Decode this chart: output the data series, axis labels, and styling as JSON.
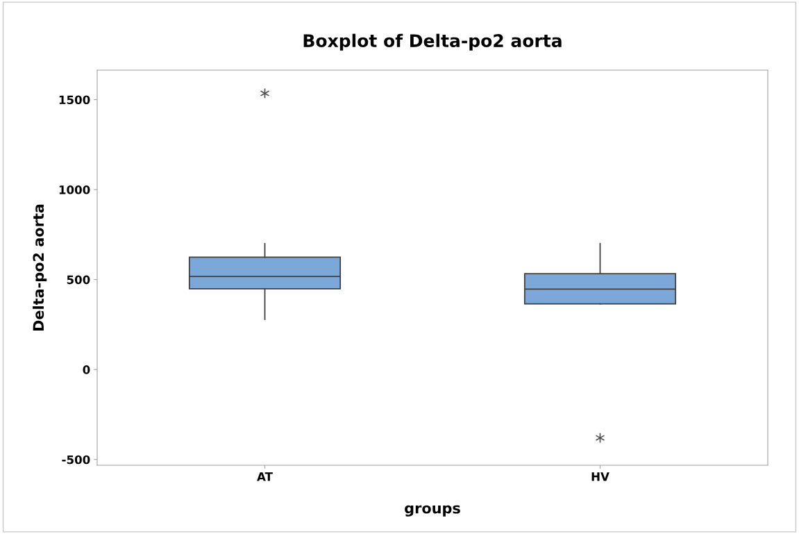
{
  "chart_data": {
    "type": "box",
    "title": "Boxplot of Delta-po2 aorta",
    "xlabel": "groups",
    "ylabel": "Delta-po2 aorta",
    "categories": [
      "AT",
      "HV"
    ],
    "series": [
      {
        "color": "#7ba7d9",
        "boxes": [
          {
            "low": 279,
            "q1": 449,
            "median": 517,
            "q3": 624,
            "high": 700,
            "outliers": [
              1535
            ]
          },
          {
            "low": 365,
            "q1": 365,
            "median": 447,
            "q3": 533,
            "high": 700,
            "outliers": [
              -380
            ]
          }
        ]
      }
    ],
    "ylim": [
      -532,
      1664
    ],
    "yticks": [
      -500,
      0,
      500,
      1000,
      1500
    ],
    "grid": false,
    "marker": "cross"
  }
}
